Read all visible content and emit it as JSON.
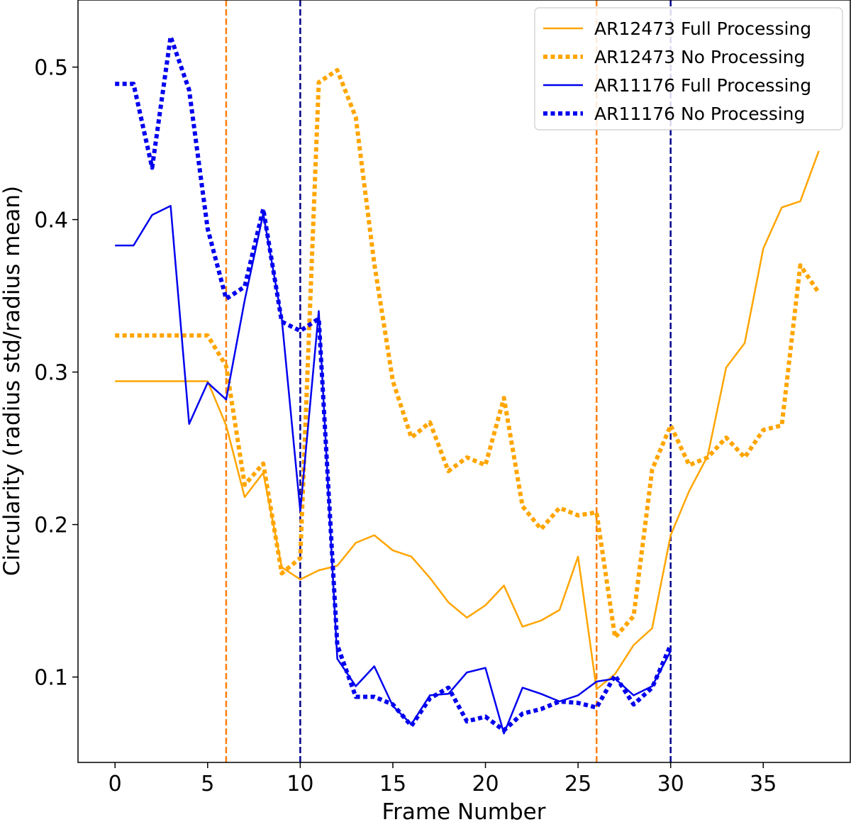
{
  "chart_data": {
    "type": "line",
    "xlabel": "Frame Number",
    "ylabel": "Circularity (radius std/radius mean)",
    "xlim": [
      -2.0,
      39.7
    ],
    "ylim": [
      0.044,
      0.544
    ],
    "xticks": [
      0,
      5,
      10,
      15,
      20,
      25,
      30,
      35
    ],
    "yticks": [
      0.1,
      0.2,
      0.3,
      0.4,
      0.5
    ],
    "grid": false,
    "legend_position": "top-right",
    "series": [
      {
        "name": "AR12473 Full Processing",
        "color": "#FFA500",
        "style": "solid",
        "x": [
          0,
          1,
          2,
          3,
          4,
          5,
          6,
          7,
          8,
          9,
          10,
          11,
          12,
          13,
          14,
          15,
          16,
          17,
          18,
          19,
          20,
          21,
          22,
          23,
          24,
          25,
          26,
          27,
          28,
          29,
          30,
          31,
          32,
          33,
          34,
          35,
          36,
          37,
          38
        ],
        "y": [
          0.294,
          0.294,
          0.294,
          0.294,
          0.294,
          0.294,
          0.265,
          0.218,
          0.234,
          0.172,
          0.164,
          0.17,
          0.173,
          0.188,
          0.193,
          0.183,
          0.179,
          0.165,
          0.149,
          0.139,
          0.147,
          0.16,
          0.133,
          0.137,
          0.144,
          0.179,
          0.092,
          0.102,
          0.121,
          0.132,
          0.193,
          0.222,
          0.245,
          0.303,
          0.319,
          0.381,
          0.408,
          0.412,
          0.445
        ]
      },
      {
        "name": "AR12473 No Processing",
        "color": "#FFA500",
        "style": "dotted",
        "x": [
          0,
          1,
          2,
          3,
          4,
          5,
          6,
          7,
          8,
          9,
          10,
          11,
          12,
          13,
          14,
          15,
          16,
          17,
          18,
          19,
          20,
          21,
          22,
          23,
          24,
          25,
          26,
          27,
          28,
          29,
          30,
          31,
          32,
          33,
          34,
          35,
          36,
          37,
          38
        ],
        "y": [
          0.324,
          0.324,
          0.324,
          0.324,
          0.324,
          0.324,
          0.304,
          0.226,
          0.24,
          0.168,
          0.178,
          0.49,
          0.498,
          0.467,
          0.371,
          0.294,
          0.257,
          0.267,
          0.235,
          0.244,
          0.239,
          0.283,
          0.212,
          0.197,
          0.211,
          0.206,
          0.208,
          0.126,
          0.14,
          0.236,
          0.265,
          0.239,
          0.244,
          0.257,
          0.244,
          0.262,
          0.265,
          0.37,
          0.352
        ]
      },
      {
        "name": "AR11176 Full Processing",
        "color": "#0000EE",
        "style": "solid",
        "x": [
          0,
          1,
          2,
          3,
          4,
          5,
          6,
          7,
          8,
          9,
          10,
          11,
          12,
          13,
          14,
          15,
          16,
          17,
          18,
          19,
          20,
          21,
          22,
          23,
          24,
          25,
          26,
          27,
          28,
          29,
          30
        ],
        "y": [
          0.383,
          0.383,
          0.403,
          0.409,
          0.266,
          0.293,
          0.282,
          0.347,
          0.404,
          0.335,
          0.209,
          0.34,
          0.112,
          0.094,
          0.107,
          0.081,
          0.069,
          0.088,
          0.089,
          0.103,
          0.106,
          0.063,
          0.093,
          0.089,
          0.084,
          0.088,
          0.097,
          0.099,
          0.088,
          0.094,
          0.117
        ]
      },
      {
        "name": "AR11176 No Processing",
        "color": "#0000EE",
        "style": "dotted",
        "x": [
          0,
          1,
          2,
          3,
          4,
          5,
          6,
          7,
          8,
          9,
          10,
          11,
          12,
          13,
          14,
          15,
          16,
          17,
          18,
          19,
          20,
          21,
          22,
          23,
          24,
          25,
          26,
          27,
          28,
          29,
          30
        ],
        "y": [
          0.489,
          0.489,
          0.434,
          0.52,
          0.485,
          0.394,
          0.348,
          0.356,
          0.407,
          0.333,
          0.327,
          0.335,
          0.121,
          0.087,
          0.087,
          0.082,
          0.068,
          0.086,
          0.093,
          0.071,
          0.074,
          0.065,
          0.076,
          0.079,
          0.084,
          0.083,
          0.08,
          0.101,
          0.082,
          0.093,
          0.121
        ]
      }
    ],
    "vlines": [
      {
        "x": 6,
        "color": "#FF7F0E",
        "style": "dashed"
      },
      {
        "x": 10,
        "color": "#00008B",
        "style": "dashed"
      },
      {
        "x": 26,
        "color": "#FF7F0E",
        "style": "dashed"
      },
      {
        "x": 30,
        "color": "#00008B",
        "style": "dashed"
      }
    ]
  }
}
